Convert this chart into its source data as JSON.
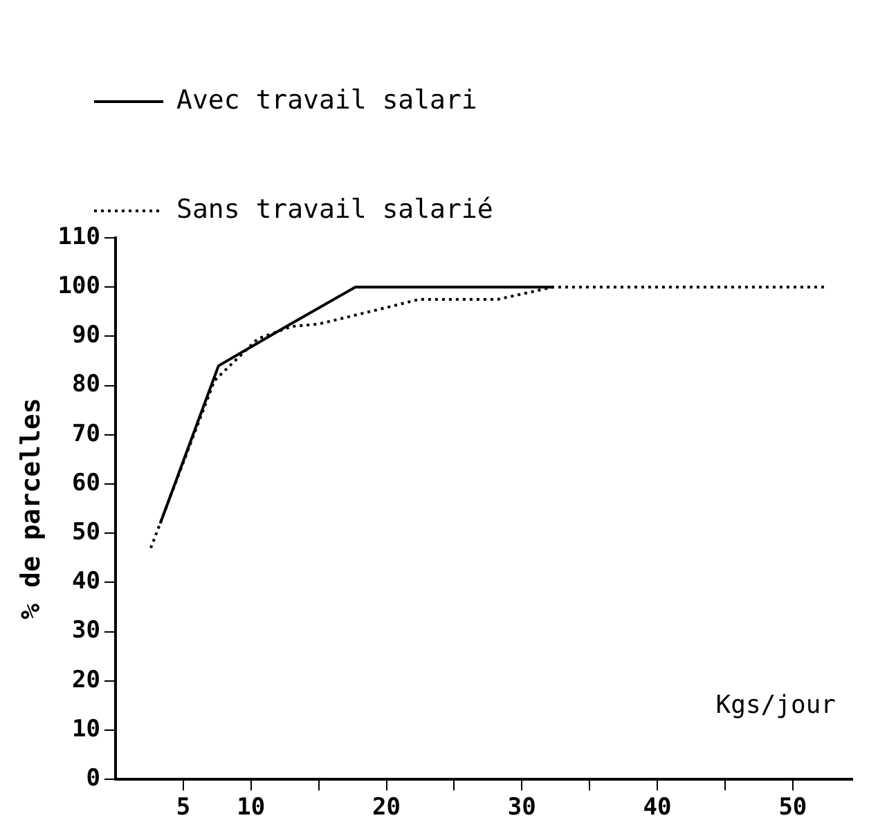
{
  "chart_data": {
    "type": "line",
    "xlabel": "Kgs/jour",
    "ylabel": "% de parcelles",
    "x": [
      3.3,
      7.6,
      12.6,
      17.7,
      32.3
    ],
    "series": [
      {
        "name": "Avec travail salari",
        "color": "#000000",
        "line_style": "solid",
        "values": [
          52,
          84,
          92,
          100,
          100
        ]
      },
      {
        "name": "Sans travail salarié",
        "color": "#000000",
        "line_style": "dotted",
        "x": [
          2.6,
          7.3,
          10.5,
          13,
          15,
          19.5,
          22.4,
          28.2,
          32.3,
          52.6
        ],
        "values": [
          47,
          81,
          89.5,
          92,
          92.5,
          95.5,
          97.5,
          97.5,
          100,
          100
        ]
      }
    ],
    "xlim": [
      0,
      54.4
    ],
    "xticks": [
      5,
      10,
      {
        "value": 15,
        "label": null
      },
      20,
      {
        "value": 25,
        "label": null
      },
      30,
      {
        "value": 35,
        "label": null
      },
      40,
      {
        "value": 45,
        "label": null
      },
      50
    ],
    "ylim": [
      0,
      110
    ],
    "yticks": [
      0,
      10,
      20,
      30,
      40,
      50,
      60,
      70,
      80,
      90,
      100,
      110
    ],
    "grid": false,
    "legend": "top left",
    "marker": "none"
  }
}
